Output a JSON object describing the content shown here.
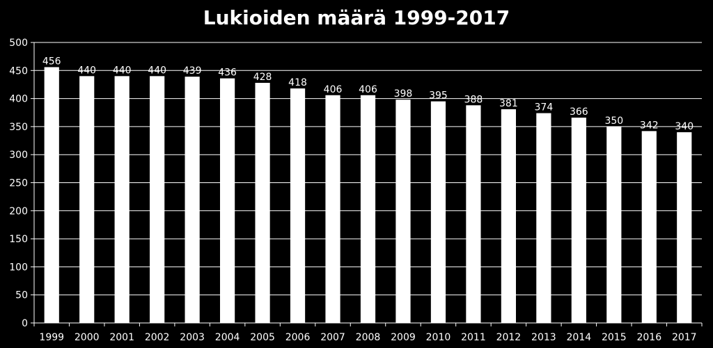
{
  "chart_data": {
    "type": "bar",
    "title": "Lukioiden määrä 1999-2017",
    "xlabel": "",
    "ylabel": "",
    "categories": [
      "1999",
      "2000",
      "2001",
      "2002",
      "2003",
      "2004",
      "2005",
      "2006",
      "2007",
      "2008",
      "2009",
      "2010",
      "2011",
      "2012",
      "2013",
      "2014",
      "2015",
      "2016",
      "2017"
    ],
    "values": [
      456,
      440,
      440,
      440,
      439,
      436,
      428,
      418,
      406,
      406,
      398,
      395,
      388,
      381,
      374,
      366,
      350,
      342,
      340
    ],
    "ylim": [
      0,
      500
    ],
    "yticks": [
      0,
      50,
      100,
      150,
      200,
      250,
      300,
      350,
      400,
      450,
      500
    ],
    "grid": true,
    "legend": "none",
    "colors": {
      "background": "#000000",
      "bar": "#ffffff",
      "text": "#ffffff",
      "grid": "#ffffff"
    }
  }
}
